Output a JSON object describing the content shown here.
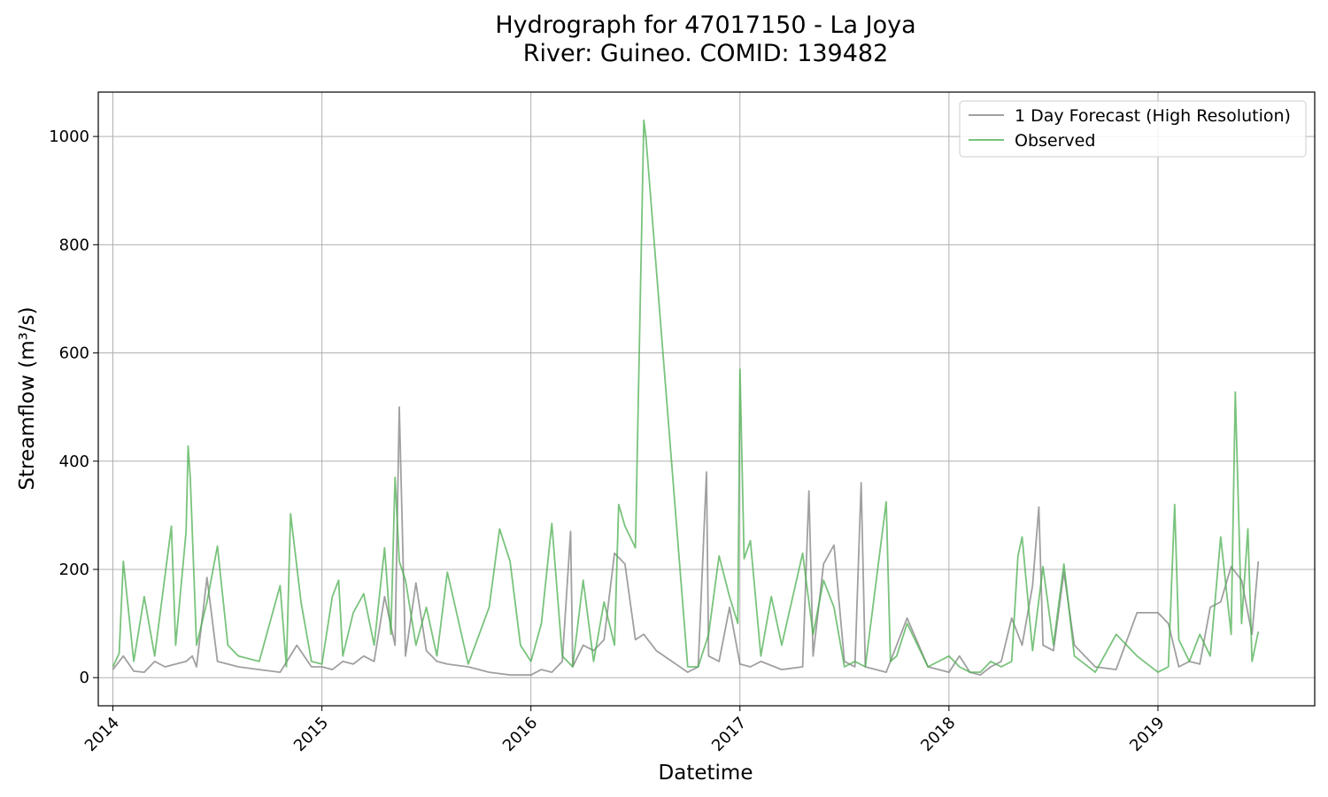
{
  "chart_data": {
    "type": "line",
    "title": "Hydrograph for 47017150 - La Joya",
    "subtitle": "River: Guineo. COMID: 139482",
    "xlabel": "Datetime",
    "ylabel": "Streamflow (m³/s)",
    "xlim": [
      2013.93,
      2019.75
    ],
    "ylim": [
      -52,
      1082
    ],
    "x_ticks": [
      2014,
      2015,
      2016,
      2017,
      2018,
      2019
    ],
    "x_tick_labels": [
      "2014",
      "2015",
      "2016",
      "2017",
      "2018",
      "2019"
    ],
    "y_ticks": [
      0,
      200,
      400,
      600,
      800,
      1000
    ],
    "y_tick_labels": [
      "0",
      "200",
      "400",
      "600",
      "800",
      "1000"
    ],
    "grid": true,
    "legend_position": "top-right",
    "series": [
      {
        "name": "1 Day Forecast (High Resolution)",
        "color": "#808080",
        "x": [
          2014.0,
          2014.05,
          2014.1,
          2014.15,
          2014.2,
          2014.25,
          2014.3,
          2014.35,
          2014.38,
          2014.4,
          2014.45,
          2014.5,
          2014.55,
          2014.6,
          2014.7,
          2014.8,
          2014.88,
          2014.95,
          2015.0,
          2015.05,
          2015.1,
          2015.15,
          2015.2,
          2015.25,
          2015.3,
          2015.35,
          2015.37,
          2015.4,
          2015.45,
          2015.5,
          2015.55,
          2015.6,
          2015.7,
          2015.8,
          2015.9,
          2016.0,
          2016.05,
          2016.1,
          2016.15,
          2016.19,
          2016.2,
          2016.25,
          2016.3,
          2016.35,
          2016.4,
          2016.45,
          2016.5,
          2016.54,
          2016.55,
          2016.6,
          2016.75,
          2016.8,
          2016.84,
          2016.85,
          2016.9,
          2016.95,
          2017.0,
          2017.05,
          2017.1,
          2017.2,
          2017.3,
          2017.33,
          2017.35,
          2017.4,
          2017.45,
          2017.5,
          2017.55,
          2017.58,
          2017.6,
          2017.7,
          2017.8,
          2017.9,
          2018.0,
          2018.05,
          2018.1,
          2018.15,
          2018.2,
          2018.25,
          2018.3,
          2018.35,
          2018.4,
          2018.43,
          2018.45,
          2018.5,
          2018.55,
          2018.6,
          2018.7,
          2018.8,
          2018.9,
          2019.0,
          2019.05,
          2019.1,
          2019.15,
          2019.2,
          2019.25,
          2019.3,
          2019.35,
          2019.4,
          2019.45,
          2019.48
        ],
        "y": [
          15,
          40,
          12,
          10,
          30,
          20,
          25,
          30,
          40,
          20,
          185,
          30,
          25,
          20,
          15,
          10,
          60,
          20,
          20,
          15,
          30,
          25,
          40,
          30,
          150,
          60,
          500,
          40,
          175,
          50,
          30,
          25,
          20,
          10,
          5,
          5,
          15,
          10,
          30,
          270,
          20,
          60,
          50,
          70,
          230,
          210,
          70,
          80,
          75,
          50,
          10,
          20,
          380,
          40,
          30,
          130,
          25,
          20,
          30,
          15,
          20,
          345,
          40,
          210,
          245,
          30,
          20,
          360,
          20,
          10,
          110,
          20,
          10,
          40,
          10,
          5,
          20,
          30,
          110,
          60,
          170,
          315,
          60,
          50,
          195,
          60,
          20,
          15,
          120,
          120,
          100,
          20,
          30,
          25,
          130,
          140,
          205,
          180,
          80,
          215
        ]
      },
      {
        "name": "Observed",
        "color": "#4caf50",
        "x": [
          2014.0,
          2014.03,
          2014.05,
          2014.1,
          2014.15,
          2014.2,
          2014.28,
          2014.3,
          2014.35,
          2014.36,
          2014.37,
          2014.4,
          2014.45,
          2014.5,
          2014.55,
          2014.6,
          2014.7,
          2014.8,
          2014.83,
          2014.85,
          2014.9,
          2014.95,
          2015.0,
          2015.05,
          2015.08,
          2015.1,
          2015.15,
          2015.2,
          2015.25,
          2015.3,
          2015.33,
          2015.35,
          2015.37,
          2015.4,
          2015.45,
          2015.5,
          2015.55,
          2015.6,
          2015.7,
          2015.8,
          2015.85,
          2015.9,
          2015.95,
          2016.0,
          2016.05,
          2016.1,
          2016.15,
          2016.2,
          2016.25,
          2016.3,
          2016.35,
          2016.4,
          2016.42,
          2016.45,
          2016.5,
          2016.54,
          2016.55,
          2016.75,
          2016.8,
          2016.85,
          2016.9,
          2016.95,
          2016.99,
          2017.0,
          2017.02,
          2017.05,
          2017.1,
          2017.15,
          2017.2,
          2017.3,
          2017.35,
          2017.4,
          2017.45,
          2017.5,
          2017.55,
          2017.6,
          2017.7,
          2017.72,
          2017.75,
          2017.8,
          2017.9,
          2018.0,
          2018.05,
          2018.1,
          2018.15,
          2018.2,
          2018.25,
          2018.3,
          2018.33,
          2018.35,
          2018.4,
          2018.45,
          2018.5,
          2018.55,
          2018.6,
          2018.7,
          2018.8,
          2018.9,
          2019.0,
          2019.05,
          2019.08,
          2019.1,
          2019.15,
          2019.2,
          2019.25,
          2019.3,
          2019.35,
          2019.37,
          2019.4,
          2019.43,
          2019.45,
          2019.48
        ],
        "y": [
          20,
          45,
          215,
          30,
          150,
          40,
          280,
          60,
          270,
          428,
          370,
          60,
          140,
          243,
          60,
          40,
          30,
          170,
          20,
          303,
          140,
          30,
          25,
          150,
          180,
          40,
          120,
          155,
          60,
          240,
          80,
          370,
          215,
          180,
          60,
          130,
          40,
          195,
          25,
          130,
          275,
          215,
          60,
          30,
          100,
          285,
          40,
          20,
          180,
          30,
          140,
          60,
          320,
          280,
          240,
          1030,
          1000,
          20,
          20,
          80,
          225,
          150,
          100,
          570,
          220,
          253,
          40,
          150,
          60,
          230,
          80,
          180,
          130,
          20,
          30,
          20,
          325,
          30,
          40,
          100,
          20,
          40,
          20,
          10,
          10,
          30,
          20,
          30,
          225,
          260,
          50,
          205,
          60,
          210,
          40,
          10,
          80,
          40,
          10,
          20,
          320,
          70,
          30,
          80,
          40,
          260,
          80,
          528,
          100,
          275,
          30,
          85
        ]
      }
    ]
  }
}
